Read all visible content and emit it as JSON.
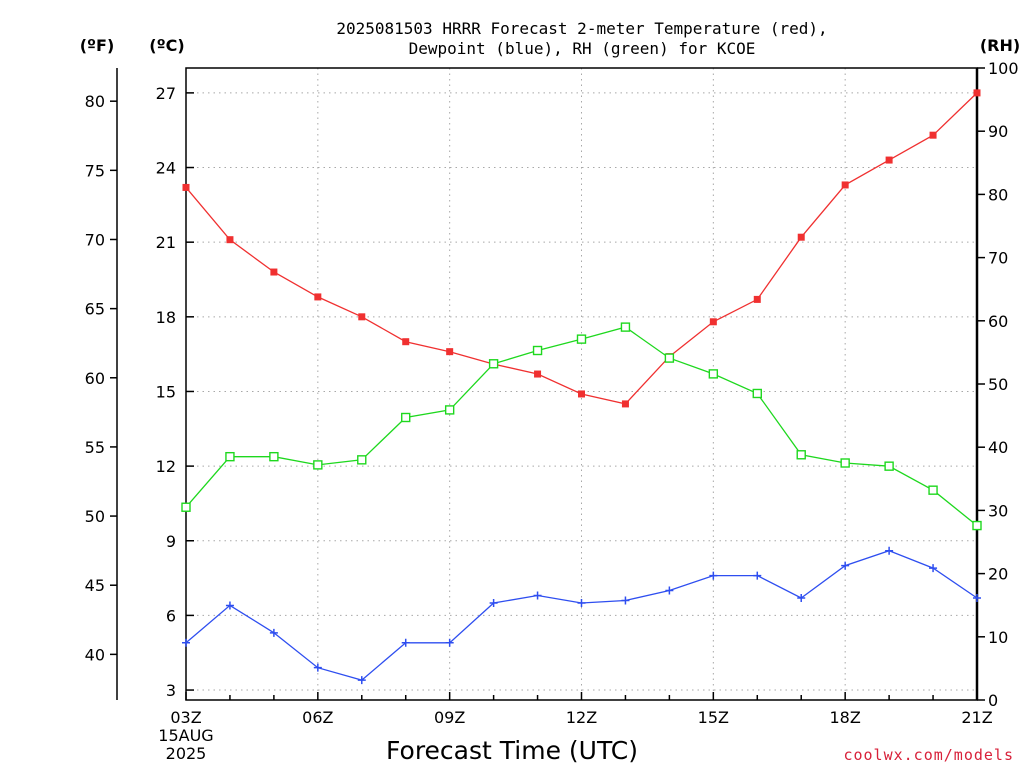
{
  "chart_data": {
    "type": "line",
    "title": "2025081503 HRRR Forecast 2-meter Temperature (red),",
    "subtitle": "Dewpoint (blue), RH (green) for KCOE",
    "xlabel": "Forecast Time (UTC)",
    "x": [
      "03Z",
      "04Z",
      "05Z",
      "06Z",
      "07Z",
      "08Z",
      "09Z",
      "10Z",
      "11Z",
      "12Z",
      "13Z",
      "14Z",
      "15Z",
      "16Z",
      "17Z",
      "18Z",
      "19Z",
      "20Z",
      "21Z"
    ],
    "x_tick_labels": [
      "03Z",
      "06Z",
      "09Z",
      "12Z",
      "15Z",
      "18Z",
      "21Z"
    ],
    "x_start_date_lines": [
      "15AUG",
      "2025"
    ],
    "y_left_celsius": {
      "unit_label": "(ºC)",
      "range": [
        2.6,
        28.0
      ],
      "ticks": [
        "3",
        "6",
        "9",
        "12",
        "15",
        "18",
        "21",
        "24",
        "27"
      ]
    },
    "y_left_fahrenheit": {
      "unit_label": "(ºF)",
      "range": [
        36.7,
        82.4
      ],
      "ticks": [
        "40",
        "45",
        "50",
        "55",
        "60",
        "65",
        "70",
        "75",
        "80"
      ]
    },
    "y_right_rh": {
      "unit_label": "(RH)",
      "range": [
        0,
        100
      ],
      "ticks": [
        "0",
        "10",
        "20",
        "30",
        "40",
        "50",
        "60",
        "70",
        "80",
        "90",
        "100"
      ]
    },
    "grid": true,
    "series": [
      {
        "axis": "celsius",
        "marker": "filled-square",
        "color": "#f03030",
        "values": [
          23.2,
          21.1,
          19.8,
          18.8,
          18.0,
          17.0,
          16.6,
          16.1,
          15.7,
          14.9,
          14.5,
          16.4,
          17.8,
          18.7,
          21.2,
          23.3,
          24.3,
          25.3,
          27.0
        ]
      },
      {
        "axis": "celsius",
        "marker": "plus",
        "color": "#2e4ef0",
        "values": [
          4.9,
          6.4,
          5.3,
          3.9,
          3.4,
          4.9,
          4.9,
          6.5,
          6.8,
          6.5,
          6.6,
          7.0,
          7.6,
          7.6,
          6.7,
          8.0,
          8.6,
          7.9,
          6.7
        ]
      },
      {
        "axis": "rh",
        "marker": "open-square",
        "color": "#1ed81e",
        "values": [
          30.5,
          38.5,
          38.5,
          37.2,
          38.0,
          44.7,
          45.9,
          53.2,
          55.3,
          57.1,
          59.0,
          54.1,
          51.6,
          48.5,
          38.8,
          37.5,
          37.0,
          33.2,
          27.6
        ]
      }
    ]
  },
  "credit": "coolwx.com/models"
}
